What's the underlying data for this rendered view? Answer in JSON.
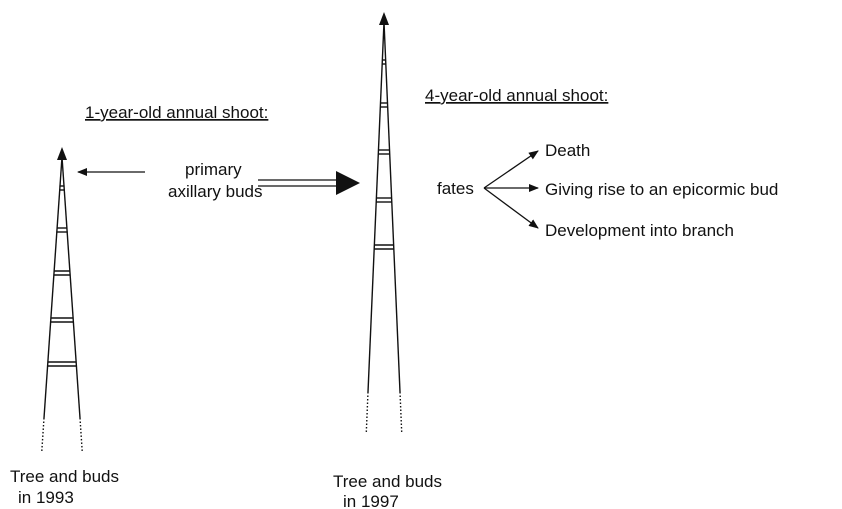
{
  "titles": {
    "left": "1-year-old annual shoot:",
    "right": "4-year-old annual shoot:"
  },
  "buds_label": {
    "line1": "primary",
    "line2": "axillary buds"
  },
  "fates": {
    "label": "fates",
    "outcomes": [
      "Death",
      "Giving rise to an epicormic bud",
      "Development into branch"
    ]
  },
  "captions": {
    "left": {
      "line1": "Tree and buds",
      "line2": "in 1993"
    },
    "right": {
      "line1": "Tree and buds",
      "line2": "in 1997"
    }
  }
}
